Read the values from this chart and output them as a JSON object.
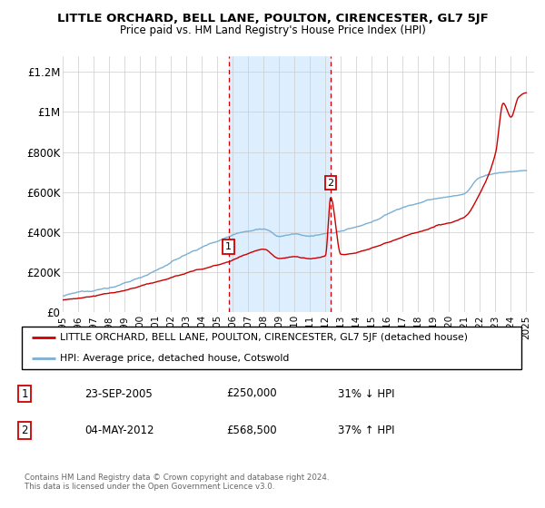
{
  "title": "LITTLE ORCHARD, BELL LANE, POULTON, CIRENCESTER, GL7 5JF",
  "subtitle": "Price paid vs. HM Land Registry's House Price Index (HPI)",
  "ylabel_ticks": [
    "£0",
    "£200K",
    "£400K",
    "£600K",
    "£800K",
    "£1M",
    "£1.2M"
  ],
  "ytick_vals": [
    0,
    200000,
    400000,
    600000,
    800000,
    1000000,
    1200000
  ],
  "x_start_year": 1995,
  "x_end_year": 2025,
  "sale1_year": 2005.73,
  "sale1_price": 250000,
  "sale1_label": "1",
  "sale1_date": "23-SEP-2005",
  "sale1_pct": "31% ↓ HPI",
  "sale2_year": 2012.34,
  "sale2_price": 568500,
  "sale2_label": "2",
  "sale2_date": "04-MAY-2012",
  "sale2_pct": "37% ↑ HPI",
  "red_color": "#cc0000",
  "blue_color": "#7bafd4",
  "shade_color": "#ddeeff",
  "footer": "Contains HM Land Registry data © Crown copyright and database right 2024.\nThis data is licensed under the Open Government Licence v3.0.",
  "legend_red_label": "LITTLE ORCHARD, BELL LANE, POULTON, CIRENCESTER, GL7 5JF (detached house)",
  "legend_blue_label": "HPI: Average price, detached house, Cotswold"
}
